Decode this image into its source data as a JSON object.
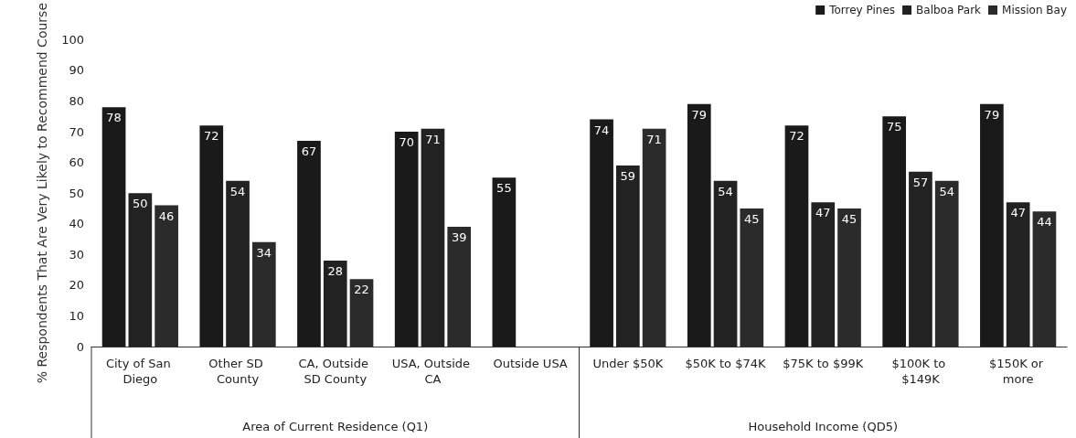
{
  "chart_data": {
    "type": "bar",
    "ylabel": "% Respondents That Are Very Likely to Recommend Course",
    "categories": [
      "City of San Diego",
      "Other SD County",
      "CA, Outside SD County",
      "USA, Outside CA",
      "Outside USA",
      "Under $50K",
      "$50K to $74K",
      "$75K to $99K",
      "$100K to $149K",
      "$150K or more"
    ],
    "series": [
      {
        "name": "Torrey Pines",
        "color": "#1a1a1a",
        "values": [
          78,
          72,
          67,
          70,
          55,
          74,
          79,
          72,
          75,
          79
        ]
      },
      {
        "name": "Balboa Park",
        "color": "#222222",
        "values": [
          50,
          54,
          28,
          71,
          null,
          59,
          54,
          47,
          57,
          47
        ]
      },
      {
        "name": "Mission Bay",
        "color": "#2b2b2b",
        "values": [
          46,
          34,
          22,
          39,
          null,
          71,
          45,
          45,
          54,
          44
        ]
      }
    ],
    "ylim": [
      0,
      100
    ],
    "yticks": [
      0,
      10,
      20,
      30,
      40,
      50,
      60,
      70,
      80,
      90,
      100
    ],
    "grid": false,
    "legend": "top right",
    "data_labels": true,
    "annotations": [
      "Area of Current Residence (Q1)",
      "Household Income (QD5)"
    ]
  }
}
